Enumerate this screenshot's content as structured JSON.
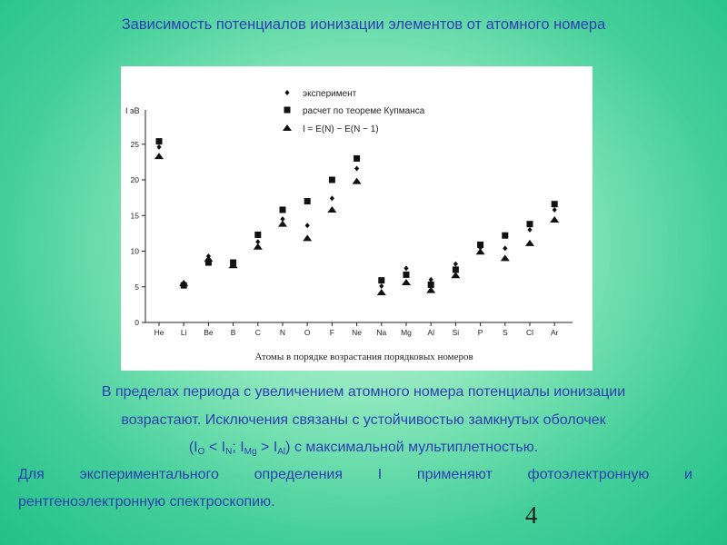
{
  "slide": {
    "title": "Зависимость потенциалов ионизации элементов от атомного номера",
    "page_number": "4"
  },
  "chart_data": {
    "type": "scatter",
    "ylabel": "I эВ",
    "xlabel": "Атомы в порядке возрастания порядковых номеров",
    "categories": [
      "He",
      "Li",
      "Be",
      "B",
      "C",
      "N",
      "O",
      "F",
      "Ne",
      "Na",
      "Mg",
      "Al",
      "Si",
      "P",
      "S",
      "Cl",
      "Ar"
    ],
    "yticks": [
      "0",
      "5",
      "10",
      "15",
      "20",
      "25"
    ],
    "ylim": [
      0,
      28
    ],
    "legend_position": "top-center",
    "series": [
      {
        "name": "эксперимент",
        "marker": "diamond",
        "values": [
          24.6,
          5.4,
          9.3,
          8.3,
          11.3,
          14.5,
          13.6,
          17.4,
          21.6,
          5.1,
          7.6,
          6.0,
          8.2,
          10.5,
          10.4,
          13.0,
          15.8
        ]
      },
      {
        "name": "расчет по теореме Купманса",
        "marker": "square",
        "values": [
          25.4,
          5.2,
          8.4,
          8.4,
          12.3,
          15.8,
          17.0,
          20.0,
          23.0,
          5.9,
          6.7,
          5.3,
          7.4,
          10.9,
          12.2,
          13.8,
          16.6
        ]
      },
      {
        "name": "I = E(N) − E(N − 1)",
        "marker": "triangle",
        "values": [
          23.3,
          5.5,
          8.9,
          8.0,
          10.6,
          13.8,
          11.8,
          15.8,
          19.8,
          4.2,
          5.6,
          4.5,
          6.6,
          9.9,
          9.0,
          11.1,
          14.4
        ]
      }
    ]
  },
  "text": {
    "line1": "В пределах периода с увеличением атомного номера потенциалы ионизации",
    "line2": "возрастают. Исключения связаны с устойчивостью замкнутых оболочек",
    "line3": {
      "open": "(I",
      "s1": "O",
      "t1": " < I",
      "s2": "N",
      "t2": "; I",
      "s3": "Mg",
      "t3": " > I",
      "s4": "Al",
      "close": ") с максимальной мультиплетностью."
    },
    "line4": "Для экспериментального определения I применяют фотоэлектронную и",
    "line5": "рентгеноэлектронную спектроскопию."
  }
}
